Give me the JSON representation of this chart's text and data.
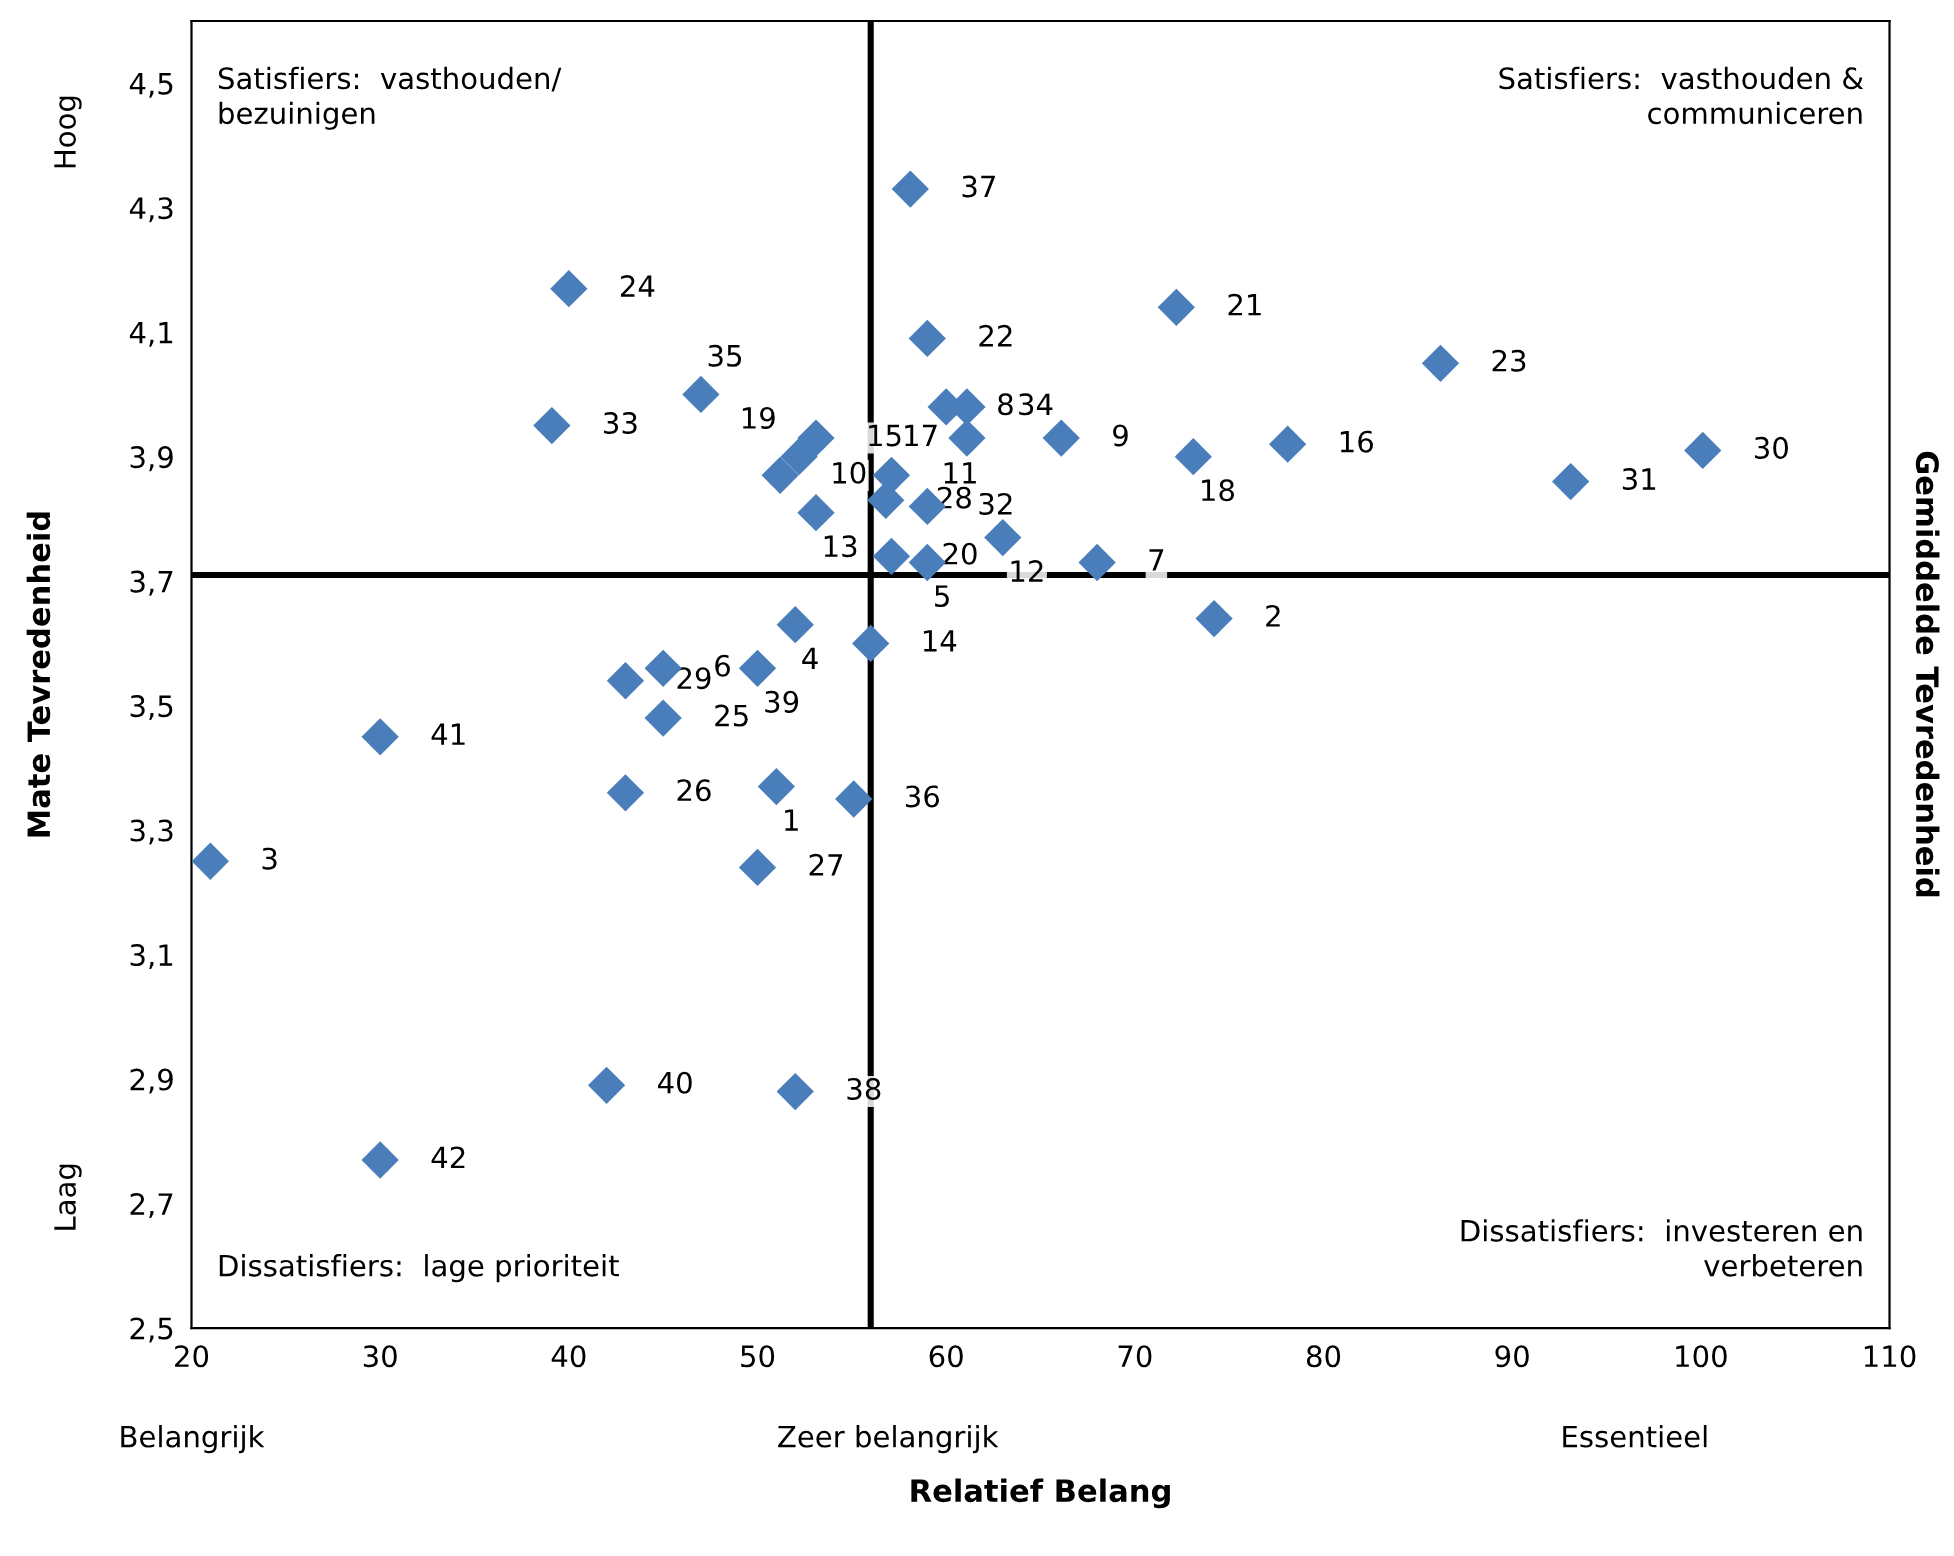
{
  "chart_data": {
    "type": "scatter",
    "xlabel": "Relatief Belang",
    "ylabel": "Mate Tevredenheid",
    "y2label": "Gemiddelde Tevredenheid",
    "x": [
      51.0,
      74.2,
      21.0,
      52.0,
      59.0,
      45.0,
      68.0,
      60.0,
      66.1,
      51.2,
      57.1,
      63.0,
      53.1,
      56.0,
      53.1,
      78.1,
      61.1,
      73.1,
      52.2,
      57.1,
      72.2,
      59.0,
      86.2,
      40.0,
      45.0,
      43.0,
      50.0,
      56.8,
      43.0,
      100.1,
      93.1,
      59.0,
      39.1,
      61.1,
      47.0,
      55.1,
      58.1,
      52.0,
      50.0,
      42.0,
      30.0,
      30.0
    ],
    "values": [
      3.37,
      3.64,
      3.25,
      3.63,
      3.73,
      3.56,
      3.73,
      3.98,
      3.93,
      3.87,
      3.87,
      3.77,
      3.81,
      3.6,
      3.93,
      3.92,
      3.93,
      3.9,
      3.9,
      3.74,
      4.14,
      4.09,
      4.05,
      4.17,
      3.48,
      3.36,
      3.24,
      3.83,
      3.54,
      3.91,
      3.86,
      3.82,
      3.95,
      3.98,
      4.0,
      3.35,
      4.33,
      2.88,
      3.56,
      2.89,
      3.45,
      2.77
    ],
    "color": "#4a7ebb",
    "marker": "diamond",
    "grid": false,
    "legend": false,
    "xlim": [
      20,
      110
    ],
    "xticks": [
      20,
      30,
      40,
      50,
      60,
      70,
      80,
      90,
      100,
      110
    ],
    "ylim": [
      2.5,
      4.6
    ],
    "yticks": [
      {
        "value": 2.5,
        "label": "2,5"
      },
      {
        "value": 2.7,
        "label": "2,7"
      },
      {
        "value": 2.9,
        "label": "2,9"
      },
      {
        "value": 3.1,
        "label": "3,1"
      },
      {
        "value": 3.3,
        "label": "3,3"
      },
      {
        "value": 3.5,
        "label": "3,5"
      },
      {
        "value": 3.7,
        "label": "3,7"
      },
      {
        "value": 3.9,
        "label": "3,9"
      },
      {
        "value": 4.1,
        "label": "4,1"
      },
      {
        "value": 4.3,
        "label": "4,3"
      },
      {
        "value": 4.5,
        "label": "4,5"
      }
    ],
    "ref_lines": [
      {
        "axis": "x",
        "value": 56,
        "color": "#000000"
      },
      {
        "axis": "y",
        "value": 3.71,
        "color": "#000000"
      }
    ],
    "annotations": [
      "Satisfiers:  vasthouden/\nbezuinigen",
      "Satisfiers:  vasthouden &\ncommuniceren",
      "Dissatisfiers:  lage prioriteit",
      "Dissatisfiers:  investeren en\nverbeteren",
      "Belangrijk",
      "Zeer belangrijk",
      "Essentieel",
      "Hoog",
      "Laag",
      {
        "text": "1",
        "x": 51.0,
        "y": 3.37
      },
      {
        "text": "2",
        "x": 74.2,
        "y": 3.64
      },
      {
        "text": "3",
        "x": 21.0,
        "y": 3.25
      },
      {
        "text": "4",
        "x": 52.0,
        "y": 3.63
      },
      {
        "text": "5",
        "x": 59.0,
        "y": 3.73
      },
      {
        "text": "6",
        "x": 45.0,
        "y": 3.56
      },
      {
        "text": "7",
        "x": 68.0,
        "y": 3.73
      },
      {
        "text": "8",
        "x": 60.0,
        "y": 3.98
      },
      {
        "text": "9",
        "x": 66.1,
        "y": 3.93
      },
      {
        "text": "10",
        "x": 51.2,
        "y": 3.87
      },
      {
        "text": "11",
        "x": 57.1,
        "y": 3.87
      },
      {
        "text": "12",
        "x": 63.0,
        "y": 3.77
      },
      {
        "text": "13",
        "x": 53.1,
        "y": 3.81
      },
      {
        "text": "14",
        "x": 56.0,
        "y": 3.6
      },
      {
        "text": "15",
        "x": 53.1,
        "y": 3.93
      },
      {
        "text": "16",
        "x": 78.1,
        "y": 3.92
      },
      {
        "text": "17",
        "x": 61.1,
        "y": 3.93
      },
      {
        "text": "18",
        "x": 73.1,
        "y": 3.9
      },
      {
        "text": "19",
        "x": 52.2,
        "y": 3.9
      },
      {
        "text": "20",
        "x": 57.1,
        "y": 3.74
      },
      {
        "text": "21",
        "x": 72.2,
        "y": 4.14
      },
      {
        "text": "22",
        "x": 59.0,
        "y": 4.09
      },
      {
        "text": "23",
        "x": 86.2,
        "y": 4.05
      },
      {
        "text": "24",
        "x": 40.0,
        "y": 4.17
      },
      {
        "text": "25",
        "x": 45.0,
        "y": 3.48
      },
      {
        "text": "26",
        "x": 43.0,
        "y": 3.36
      },
      {
        "text": "27",
        "x": 50.0,
        "y": 3.24
      },
      {
        "text": "28",
        "x": 56.8,
        "y": 3.83
      },
      {
        "text": "29",
        "x": 43.0,
        "y": 3.54
      },
      {
        "text": "30",
        "x": 100.1,
        "y": 3.91
      },
      {
        "text": "31",
        "x": 93.1,
        "y": 3.86
      },
      {
        "text": "32",
        "x": 59.0,
        "y": 3.82
      },
      {
        "text": "33",
        "x": 39.1,
        "y": 3.95
      },
      {
        "text": "34",
        "x": 61.1,
        "y": 3.98
      },
      {
        "text": "35",
        "x": 47.0,
        "y": 4.0
      },
      {
        "text": "36",
        "x": 55.1,
        "y": 3.35
      },
      {
        "text": "37",
        "x": 58.1,
        "y": 4.33
      },
      {
        "text": "38",
        "x": 52.0,
        "y": 2.88
      },
      {
        "text": "39",
        "x": 50.0,
        "y": 3.56
      },
      {
        "text": "40",
        "x": 42.0,
        "y": 2.89
      },
      {
        "text": "41",
        "x": 30.0,
        "y": 3.45
      },
      {
        "text": "42",
        "x": 30.0,
        "y": 2.77
      }
    ]
  }
}
